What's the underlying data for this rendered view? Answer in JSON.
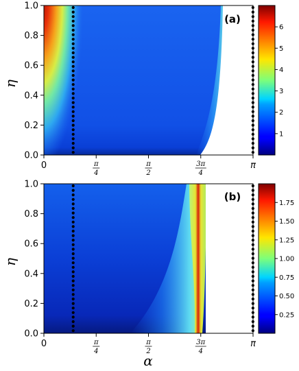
{
  "chart_data": [
    {
      "type": "heatmap",
      "panel_label": "(a)",
      "xlabel": "",
      "ylabel": "η",
      "xlim": [
        0,
        3.14159
      ],
      "ylim": [
        0,
        1.0
      ],
      "x_ticks": [
        {
          "value": 0,
          "label": "0"
        },
        {
          "value": 0.7854,
          "label": "π/4",
          "num": "π",
          "den": "4"
        },
        {
          "value": 1.5708,
          "label": "π/2",
          "num": "π",
          "den": "2"
        },
        {
          "value": 2.3562,
          "label": "3π/4",
          "num": "3π",
          "den": "4"
        },
        {
          "value": 3.14159,
          "label": "π"
        }
      ],
      "y_ticks": [
        "0.0",
        "0.2",
        "0.4",
        "0.6",
        "0.8",
        "1.0"
      ],
      "dotted_lines_x": [
        0.44,
        3.14
      ],
      "colorbar": {
        "min": 0,
        "max": 7.0,
        "ticks": [
          "1",
          "2",
          "3",
          "4",
          "5",
          "6"
        ]
      }
    },
    {
      "type": "heatmap",
      "panel_label": "(b)",
      "xlabel": "α",
      "ylabel": "η",
      "xlim": [
        0,
        3.14159
      ],
      "ylim": [
        0,
        1.0
      ],
      "x_ticks": [
        {
          "value": 0,
          "label": "0"
        },
        {
          "value": 0.7854,
          "label": "π/4",
          "num": "π",
          "den": "4"
        },
        {
          "value": 1.5708,
          "label": "π/2",
          "num": "π",
          "den": "2"
        },
        {
          "value": 2.3562,
          "label": "3π/4",
          "num": "3π",
          "den": "4"
        },
        {
          "value": 3.14159,
          "label": "π"
        }
      ],
      "y_ticks": [
        "0.0",
        "0.2",
        "0.4",
        "0.6",
        "0.8",
        "1.0"
      ],
      "dotted_lines_x": [
        0.44,
        3.14
      ],
      "colorbar": {
        "min": 0,
        "max": 2.0,
        "ticks": [
          "0.25",
          "0.50",
          "0.75",
          "1.00",
          "1.25",
          "1.50",
          "1.75"
        ]
      }
    }
  ]
}
